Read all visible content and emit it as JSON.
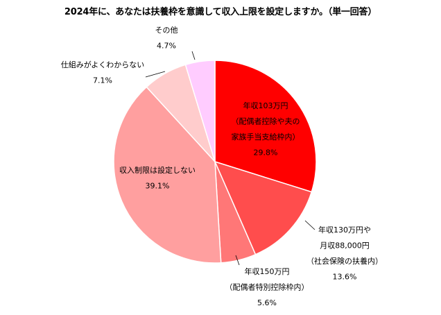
{
  "chart_data": {
    "type": "pie",
    "title": "2024年に、あなたは扶養枠を意識して収入上限を設定しますか。（単一回答）",
    "slices": [
      {
        "label_lines": [
          "年収103万円",
          "（配偶者控除や夫の",
          "家族手当支給枠内）"
        ],
        "value": 29.8,
        "value_label": "29.8%",
        "color": "#ff0000"
      },
      {
        "label_lines": [
          "年収130万円や",
          "月収88,000円",
          "（社会保険の扶養内）"
        ],
        "value": 13.6,
        "value_label": "13.6%",
        "color": "#ff4d4d"
      },
      {
        "label_lines": [
          "年収150万円",
          "（配偶者特別控除枠内）"
        ],
        "value": 5.6,
        "value_label": "5.6%",
        "color": "#ff7777"
      },
      {
        "label_lines": [
          "収入制限は設定しない"
        ],
        "value": 39.1,
        "value_label": "39.1%",
        "color": "#ff9f9f"
      },
      {
        "label_lines": [
          "仕組みがよくわからない"
        ],
        "value": 7.1,
        "value_label": "7.1%",
        "color": "#ffcccc"
      },
      {
        "label_lines": [
          "その他"
        ],
        "value": 4.7,
        "value_label": "4.7%",
        "color": "#ffccff"
      }
    ],
    "start_angle": "12 o'clock",
    "direction": "clockwise",
    "legend": "none"
  }
}
